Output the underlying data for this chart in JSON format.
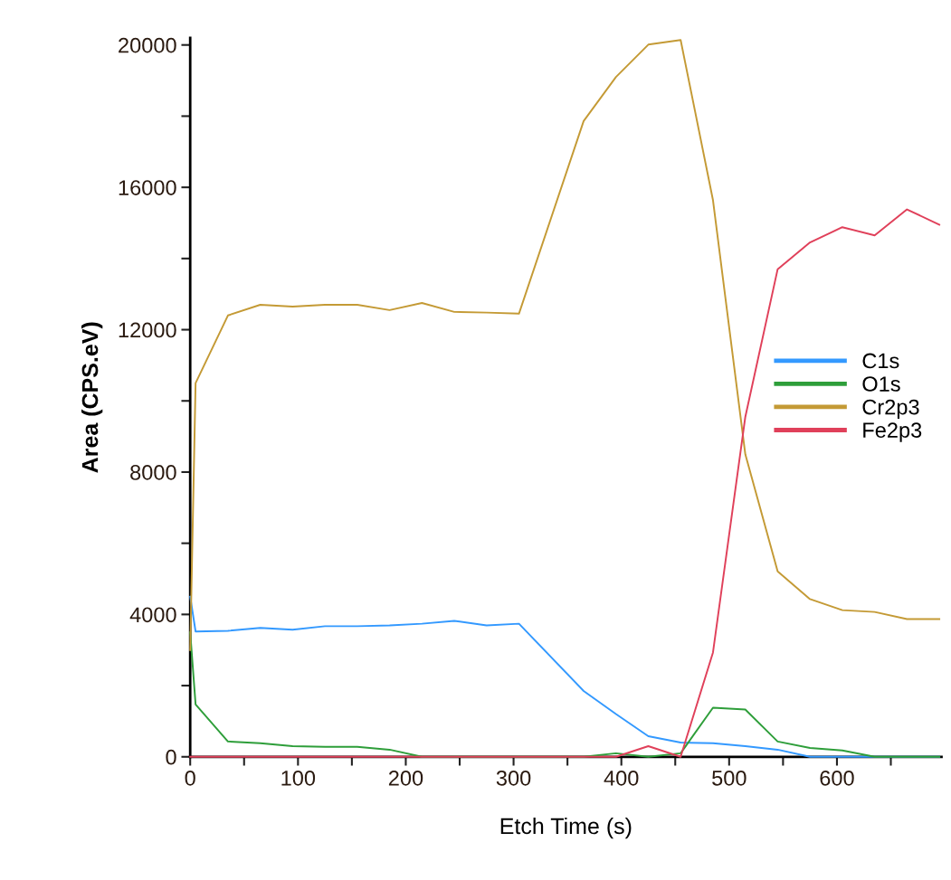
{
  "chart_data": {
    "type": "line",
    "xlabel": "Etch Time (s)",
    "ylabel": "Area (CPS.eV)",
    "x": [
      0,
      5,
      35,
      65,
      95,
      125,
      155,
      185,
      215,
      245,
      275,
      305,
      365,
      395,
      425,
      455,
      485,
      515,
      545,
      575,
      605,
      635,
      665,
      695
    ],
    "series": [
      {
        "name": "C1s",
        "color": "#3399ff",
        "values": [
          4500,
          3520,
          3540,
          3620,
          3570,
          3670,
          3670,
          3690,
          3740,
          3820,
          3690,
          3740,
          1850,
          1200,
          580,
          400,
          380,
          300,
          200,
          0,
          0,
          0,
          0,
          0
        ]
      },
      {
        "name": "O1s",
        "color": "#2e9e3a",
        "values": [
          3500,
          1470,
          430,
          380,
          300,
          280,
          280,
          200,
          0,
          0,
          0,
          0,
          0,
          100,
          0,
          100,
          1380,
          1330,
          430,
          250,
          180,
          0,
          0,
          0
        ]
      },
      {
        "name": "Cr2p3",
        "color": "#c49a35",
        "values": [
          3000,
          10500,
          12400,
          12700,
          12650,
          12700,
          12700,
          12550,
          12750,
          12500,
          12480,
          12450,
          17860,
          19100,
          20010,
          20140,
          15640,
          8500,
          5210,
          4430,
          4120,
          4070,
          3870,
          3870
        ]
      },
      {
        "name": "Fe2p3",
        "color": "#e0405a",
        "values": [
          0,
          0,
          0,
          0,
          0,
          0,
          0,
          0,
          0,
          0,
          0,
          0,
          0,
          0,
          300,
          0,
          2930,
          9550,
          13700,
          14450,
          14880,
          14650,
          15380,
          14950
        ]
      }
    ],
    "xlim": [
      0,
      697
    ],
    "ylim": [
      0,
      20200
    ],
    "xticks": [
      0,
      {
        "value": 50,
        "label": null
      },
      100,
      {
        "value": 150,
        "label": null
      },
      200,
      {
        "value": 250,
        "label": null
      },
      300,
      {
        "value": 350,
        "label": null
      },
      400,
      {
        "value": 450,
        "label": null
      },
      500,
      {
        "value": 550,
        "label": null
      },
      600,
      {
        "value": 650,
        "label": null
      }
    ],
    "yticks": [
      0,
      {
        "value": 2000,
        "label": null
      },
      4000,
      {
        "value": 6000,
        "label": null
      },
      8000,
      {
        "value": 10000,
        "label": null
      },
      12000,
      {
        "value": 14000,
        "label": null
      },
      16000,
      {
        "value": 18000,
        "label": null
      },
      20000
    ],
    "legend": "right",
    "grid": false,
    "line_style": "solid"
  }
}
